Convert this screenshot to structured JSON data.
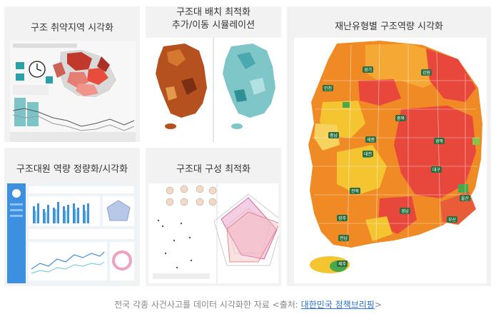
{
  "cards": {
    "vuln": {
      "title": "구조 취약지역 시각화"
    },
    "placement": {
      "title_line1": "구조대 배치 최적화",
      "title_line2": "추가/이동 시뮬레이션"
    },
    "disaster": {
      "title": "재난유형별 구조역량 시각화"
    },
    "capacity": {
      "title": "구조대원 역량 정량화/시각화"
    },
    "composition": {
      "title": "구조대 구성 최적화"
    }
  },
  "map_labels": [
    "경기",
    "강원",
    "충북",
    "충남",
    "대전",
    "경북",
    "전북",
    "대구",
    "울산",
    "경남",
    "광주",
    "전남",
    "부산",
    "제주",
    "인천",
    "세종"
  ],
  "caption": {
    "text": "전국 각종 사건사고를 데이터 시각화한 자료 <출처: ",
    "link": "대한민국 정책브리핑",
    "suffix": ">"
  },
  "colors": {
    "red": "#e8483b",
    "orange": "#f08a24",
    "yellow": "#f5c431",
    "green": "#4aa84a",
    "teal": "#2aa1a8"
  }
}
